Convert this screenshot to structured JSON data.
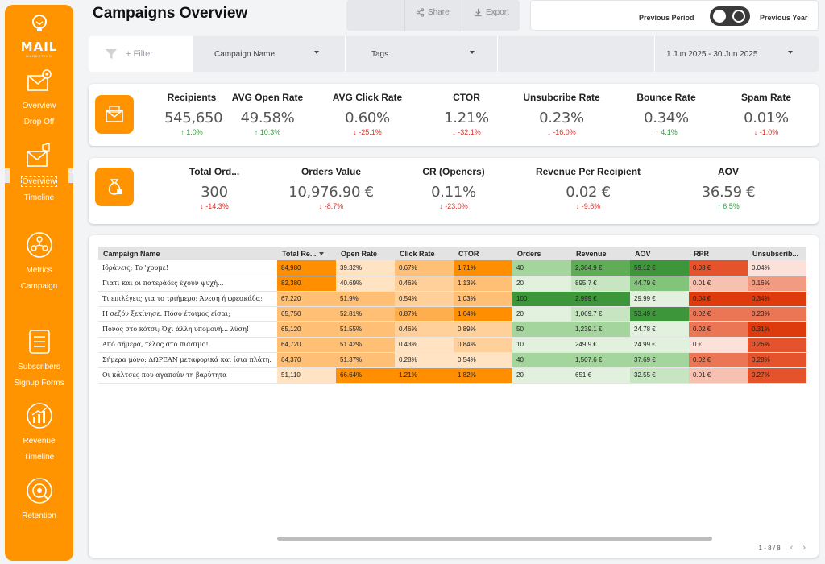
{
  "brand": {
    "logo_text": "MAIL",
    "logo_sub": "MARKETING",
    "color": "#ff9300"
  },
  "sidebar": {
    "groups": [
      {
        "icon": "email-settings-icon",
        "links": [
          {
            "label": "Overview",
            "active": false
          },
          {
            "label": "Drop Off",
            "active": false
          }
        ]
      },
      {
        "icon": "email-megaphone-icon",
        "links": [
          {
            "label": "Overview",
            "active": true
          },
          {
            "label": "Timeline",
            "active": false
          }
        ]
      },
      {
        "icon": "users-metrics-icon",
        "links": [
          {
            "label": "Metrics",
            "active": false
          },
          {
            "label": "Campaign",
            "active": false
          }
        ]
      },
      {
        "icon": "list-icon",
        "links": [
          {
            "label": "Subscribers",
            "active": false
          },
          {
            "label": "Signup Forms",
            "active": false
          }
        ]
      },
      {
        "icon": "revenue-chart-icon",
        "links": [
          {
            "label": "Revenue",
            "active": false
          },
          {
            "label": "Timeline",
            "active": false
          }
        ]
      },
      {
        "icon": "retention-icon",
        "links": [
          {
            "label": "Retention",
            "active": false
          }
        ]
      }
    ]
  },
  "header": {
    "title": "Campaigns Overview",
    "share_label": "Share",
    "export_label": "Export",
    "previous_period": "Previous Period",
    "previous_year": "Previous Year"
  },
  "filters": {
    "add_filter": "+ Filter",
    "campaign_name": "Campaign Name",
    "tags": "Tags",
    "date_range": "1 Jun 2025 - 30 Jun 2025"
  },
  "kpi_row1": [
    {
      "label": "Recipients",
      "value": "545,650",
      "delta": "1.0%",
      "dir": "up"
    },
    {
      "label": "AVG Open Rate",
      "value": "49.58%",
      "delta": "10.3%",
      "dir": "up"
    },
    {
      "label": "AVG Click Rate",
      "value": "0.60%",
      "delta": "-25.1%",
      "dir": "down"
    },
    {
      "label": "CTOR",
      "value": "1.21%",
      "delta": "-32.1%",
      "dir": "down"
    },
    {
      "label": "Unsubcribe Rate",
      "value": "0.23%",
      "delta": "-16.0%",
      "dir": "down"
    },
    {
      "label": "Bounce Rate",
      "value": "0.34%",
      "delta": "4.1%",
      "dir": "up"
    },
    {
      "label": "Spam Rate",
      "value": "0.01%",
      "delta": "-1.0%",
      "dir": "down"
    }
  ],
  "kpi_row2": [
    {
      "label": "Total Ord...",
      "value": "300",
      "delta": "-14.3%",
      "dir": "down"
    },
    {
      "label": "Orders Value",
      "value": "10,976.90 €",
      "delta": "-8.7%",
      "dir": "down"
    },
    {
      "label": "CR (Openers)",
      "value": "0.11%",
      "delta": "-23.0%",
      "dir": "down"
    },
    {
      "label": "Revenue Per Recipient",
      "value": "0.02 €",
      "delta": "-9.6%",
      "dir": "down"
    },
    {
      "label": "AOV",
      "value": "36.59 €",
      "delta": "6.5%",
      "dir": "up"
    }
  ],
  "table": {
    "columns": [
      "Campaign Name",
      "Total Re...",
      "Open Rate",
      "Click Rate",
      "CTOR",
      "Orders",
      "Revenue",
      "AOV",
      "RPR",
      "Unsubscrib..."
    ],
    "rows": [
      [
        "Ιδράνεις; Το 'χουμε!",
        "84,980",
        "39.32%",
        "0.67%",
        "1.71%",
        "40",
        "2,364.9 €",
        "59.12 €",
        "0.03 €",
        "0.04%"
      ],
      [
        "Γιατί και οι πατεράδες έχουν ψυχή...",
        "82,380",
        "40.69%",
        "0.46%",
        "1.13%",
        "20",
        "895.7 €",
        "44.79 €",
        "0.01 €",
        "0.16%"
      ],
      [
        "Τι επιλέγεις για το τριήμερο; Άνεση ή φρεσκάδα;",
        "67,220",
        "51.9%",
        "0.54%",
        "1.03%",
        "100",
        "2,999 €",
        "29.99 €",
        "0.04 €",
        "0.34%"
      ],
      [
        "Η σεζόν ξεκίνησε. Πόσο έτοιμος είσαι;",
        "65,750",
        "52.81%",
        "0.87%",
        "1.64%",
        "20",
        "1,069.7 €",
        "53.49 €",
        "0.02 €",
        "0.23%"
      ],
      [
        "Πόνος στο κότσι; Όχι άλλη υπομονή... λύση!",
        "65,120",
        "51.55%",
        "0.46%",
        "0.89%",
        "50",
        "1,239.1 €",
        "24.78 €",
        "0.02 €",
        "0.31%"
      ],
      [
        "Από σήμερα, τέλος στο πιάσιμο!",
        "64,720",
        "51.42%",
        "0.43%",
        "0.84%",
        "10",
        "249.9 €",
        "24.99 €",
        "0 €",
        "0.26%"
      ],
      [
        "Σήμερα μόνο: ΔΩΡΕΑΝ μεταφορικά και ίσια πλάτη.",
        "64,370",
        "51.37%",
        "0.28%",
        "0.54%",
        "40",
        "1,507.6 €",
        "37.69 €",
        "0.02 €",
        "0.28%"
      ],
      [
        "Οι κάλτσες που αγαπούν τη βαρύτητα",
        "51,110",
        "66.64%",
        "1.21%",
        "1.82%",
        "20",
        "651 €",
        "32.55 €",
        "0.01 €",
        "0.27%"
      ]
    ],
    "pager": "1 - 8 / 8"
  }
}
